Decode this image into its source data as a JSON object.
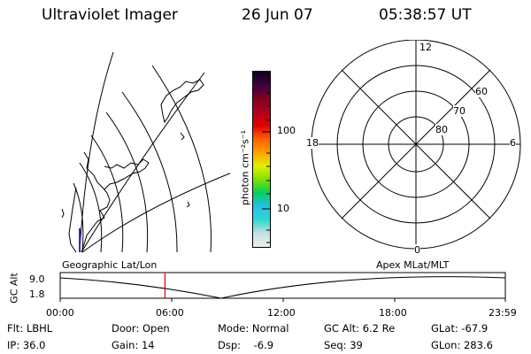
{
  "header": {
    "instrument": "Ultraviolet Imager",
    "date": "26 Jun 07",
    "time": "05:38:57 UT"
  },
  "colorbar": {
    "unit_label": "photon cm⁻²s⁻¹",
    "tick_100": "100",
    "tick_10": "10",
    "colors": [
      "#e8f0f0",
      "#c8e0e0",
      "#30d8d0",
      "#28c0e8",
      "#00d060",
      "#80e000",
      "#e0f000",
      "#ffa000",
      "#ff6000",
      "#e00000",
      "#b00020",
      "#800020",
      "#400040",
      "#100020"
    ]
  },
  "polar": {
    "label_12": "12",
    "label_6": "6",
    "label_18": "18",
    "label_0": "0",
    "label_60": "60",
    "label_70": "70",
    "label_80": "80"
  },
  "timeline": {
    "left_label": "Geographic Lat/Lon",
    "right_label": "Apex MLat/MLT",
    "axis_title": "GC Alt",
    "y_max": "9.0",
    "y_min": "1.8",
    "x_ticks": [
      "00:00",
      "06:00",
      "12:00",
      "18:00",
      "23:59"
    ],
    "current_time_fraction": 0.2354
  },
  "info": {
    "flt": "Flt: LBHL",
    "ip": "IP: 36.0",
    "door": "Door: Open",
    "gain": "Gain: 14",
    "mode": "Mode: Normal",
    "dsp": "Dsp:    -6.9",
    "gcalt": "GC Alt: 6.2 Re",
    "seq": "Seq: 39",
    "glat": "GLat: -67.9",
    "glon": "GLon: 283.6"
  }
}
